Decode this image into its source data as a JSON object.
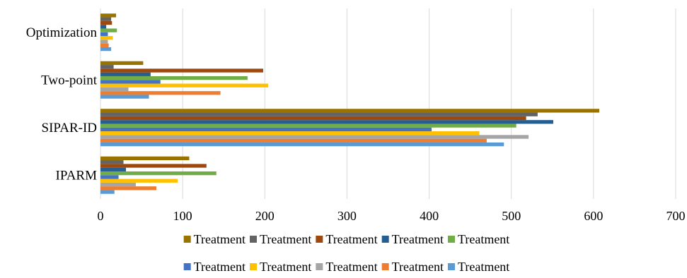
{
  "chart_data": {
    "type": "bar",
    "orientation": "horizontal",
    "categories": [
      "IPARM",
      "SIPAR-ID",
      "Two-point",
      "Optimization"
    ],
    "xlim": [
      0,
      700
    ],
    "xticks": [
      0,
      100,
      200,
      300,
      400,
      500,
      600,
      700
    ],
    "grid": true,
    "legend_position": "bottom",
    "series": [
      {
        "name": "Treatment",
        "color": "#5B9BD5",
        "values": [
          17,
          491,
          59,
          13
        ]
      },
      {
        "name": "Treatment",
        "color": "#ED7D31",
        "values": [
          68,
          470,
          146,
          10
        ]
      },
      {
        "name": "Treatment",
        "color": "#A5A5A5",
        "values": [
          43,
          521,
          34,
          9
        ]
      },
      {
        "name": "Treatment",
        "color": "#FFC000",
        "values": [
          94,
          461,
          204,
          15
        ]
      },
      {
        "name": "Treatment",
        "color": "#4472C4",
        "values": [
          22,
          403,
          73,
          9
        ]
      },
      {
        "name": "Treatment",
        "color": "#70AD47",
        "values": [
          141,
          506,
          179,
          20
        ]
      },
      {
        "name": "Treatment",
        "color": "#255E91",
        "values": [
          31,
          551,
          61,
          7
        ]
      },
      {
        "name": "Treatment",
        "color": "#9E480E",
        "values": [
          129,
          518,
          198,
          14
        ]
      },
      {
        "name": "Treatment",
        "color": "#636363",
        "values": [
          28,
          532,
          16,
          13
        ]
      },
      {
        "name": "Treatment",
        "color": "#997300",
        "values": [
          108,
          607,
          52,
          19
        ]
      }
    ],
    "legend_order": [
      [
        9,
        8,
        7,
        6,
        5
      ],
      [
        4,
        3,
        2,
        1,
        0
      ]
    ]
  }
}
